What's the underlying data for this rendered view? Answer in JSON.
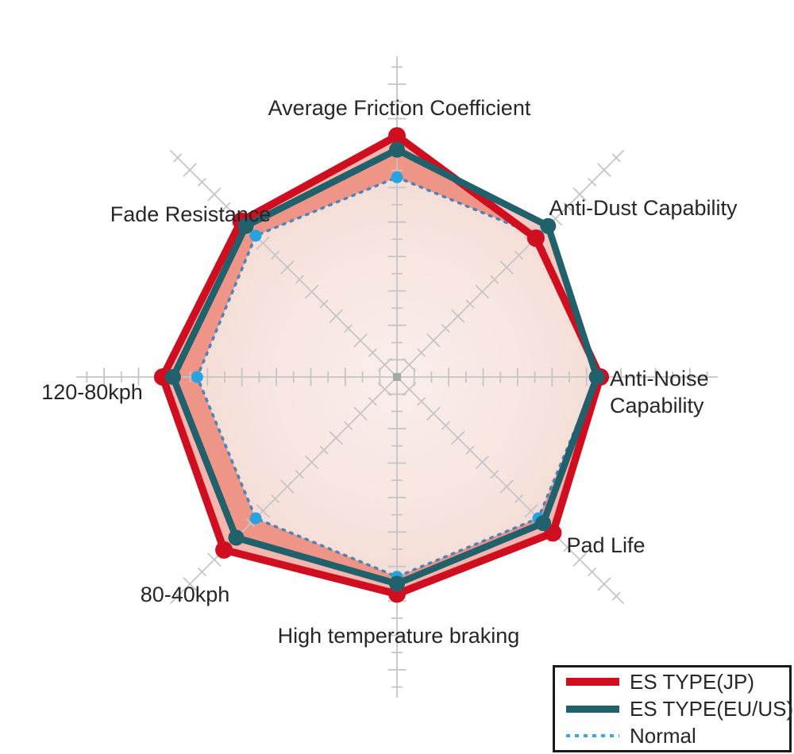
{
  "chart_data": {
    "type": "radar",
    "categories": [
      "Average Friction Coefficient",
      "Anti-Dust Capability",
      "Anti-Noise Capability",
      "Pad Life",
      "High temperature braking",
      "80-40kph",
      "120-80kph",
      "Fade Resistance"
    ],
    "series": [
      {
        "name": "ES TYPE(JP)",
        "line_style": "solid",
        "color": "#cf0e20",
        "marker_color": "#cf0e20",
        "values": [
          7.0,
          5.7,
          5.9,
          6.4,
          6.3,
          7.1,
          6.8,
          6.4
        ]
      },
      {
        "name": "ES TYPE(EU/US)",
        "line_style": "solid",
        "color": "#20616c",
        "marker_color": "#20616c",
        "values": [
          6.6,
          6.2,
          5.8,
          6.0,
          6.0,
          6.6,
          6.5,
          6.2
        ]
      },
      {
        "name": "Normal",
        "line_style": "dashed",
        "color": "#4c86b4",
        "marker_color": "#29a2e0",
        "values": [
          5.8,
          5.8,
          5.8,
          5.8,
          5.8,
          5.8,
          5.8,
          5.8
        ]
      }
    ],
    "axis": {
      "min": 0,
      "max": 9.3,
      "minor_tick": 0.5,
      "major_tick": 1.0,
      "spokes": 8,
      "start_angle_deg": 90,
      "direction": "clockwise",
      "grid": true,
      "legend_position": "bottom-right"
    },
    "colors": {
      "grid": "#c5c5c5",
      "center_marker": "#a3a8a8",
      "jp_fill": "rgba(226,63,41,0.38)",
      "eu_fill": "rgba(226,63,41,0.28)",
      "inner_fill_center": "#faeeec",
      "inner_fill_edge": "#f4dcd5",
      "legend_dash": "#38a8e0",
      "text": "#2a2627"
    }
  }
}
